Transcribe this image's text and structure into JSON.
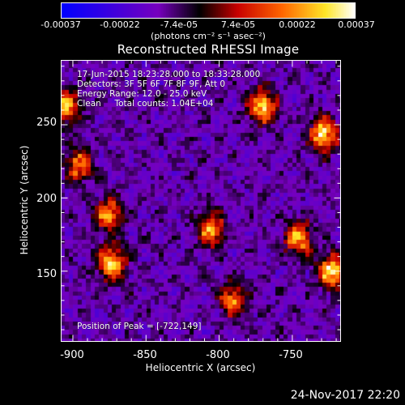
{
  "colorbar": {
    "tick_labels": [
      "-0.00037",
      "-0.00022",
      "-7.4e-05",
      "7.4e-05",
      "0.00022",
      "0.00037"
    ],
    "tick_values": [
      -0.00037,
      -0.00022,
      -7.4e-05,
      7.4e-05,
      0.00022,
      0.00037
    ],
    "units": "(photons cm⁻² s⁻¹ asec⁻²)",
    "range": [
      -0.00037,
      0.00037
    ]
  },
  "title": "Reconstructed RHESSI Image",
  "info": {
    "time_range": "17-Jun-2015 18:23:28.000 to 18:33:28.000",
    "detectors": "Detectors: 3F 5F 6F 7F 8F 9F, Att 0",
    "energy": "Energy Range: 12.0 - 25.0 keV",
    "clean": "Clean     Total counts: 1.04E+04",
    "peak": "Position of Peak = [-722,149]"
  },
  "chart_data": {
    "type": "heatmap",
    "title": "Reconstructed RHESSI Image",
    "xlabel": "Heliocentric X (arcsec)",
    "ylabel": "Heliocentric Y (arcsec)",
    "xlim": [
      -908,
      -717
    ],
    "ylim": [
      102,
      294
    ],
    "x_ticks": [
      -900,
      -850,
      -800,
      -750
    ],
    "y_ticks": [
      150,
      200,
      250
    ],
    "x_tick_labels": [
      "-900",
      "-850",
      "-800",
      "-750"
    ],
    "y_tick_labels": [
      "150",
      "200",
      "250"
    ],
    "value_range": [
      -0.00037,
      0.00037
    ],
    "peak_position": [
      -722,
      149
    ],
    "bright_sources": [
      {
        "x": -905,
        "y": 262,
        "value": 0.00034
      },
      {
        "x": -770,
        "y": 262,
        "value": 0.00033
      },
      {
        "x": -728,
        "y": 243,
        "value": 0.00035
      },
      {
        "x": -873,
        "y": 155,
        "value": 0.00033
      },
      {
        "x": -875,
        "y": 188,
        "value": 0.00025
      },
      {
        "x": -805,
        "y": 178,
        "value": 0.00027
      },
      {
        "x": -745,
        "y": 172,
        "value": 0.00028
      },
      {
        "x": -722,
        "y": 149,
        "value": 0.00037
      },
      {
        "x": -790,
        "y": 130,
        "value": 0.00024
      },
      {
        "x": -895,
        "y": 222,
        "value": 0.00022
      }
    ]
  },
  "footer_date": "24-Nov-2017 22:20"
}
